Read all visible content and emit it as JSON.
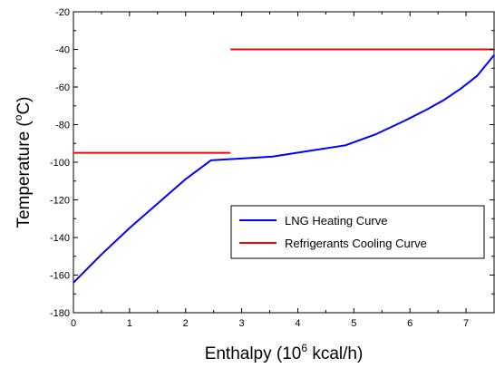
{
  "chart_data": {
    "type": "line",
    "xlabel": {
      "pre": "Enthalpy (10",
      "sup": "6",
      "post": " kcal/h)"
    },
    "ylabel": {
      "pre": "Temperature (",
      "sup": "o",
      "post": "C)"
    },
    "xlim": [
      0,
      7.5
    ],
    "ylim": [
      -180,
      -20
    ],
    "x_ticks": [
      0,
      1,
      2,
      3,
      4,
      5,
      6,
      7
    ],
    "y_ticks": [
      -180,
      -160,
      -140,
      -120,
      -100,
      -80,
      -60,
      -40,
      -20
    ],
    "grid": false,
    "legend_placement": "lower-right",
    "series": [
      {
        "name": "LNG Heating Curve",
        "color": "#0000ff",
        "points": [
          [
            0,
            -164
          ],
          [
            0.5,
            -149
          ],
          [
            1.0,
            -135
          ],
          [
            1.5,
            -122
          ],
          [
            2.0,
            -109
          ],
          [
            2.45,
            -99
          ],
          [
            3.0,
            -98
          ],
          [
            3.55,
            -97
          ],
          [
            4.2,
            -94
          ],
          [
            4.85,
            -91
          ],
          [
            5.4,
            -85
          ],
          [
            5.9,
            -78
          ],
          [
            6.3,
            -72
          ],
          [
            6.6,
            -67
          ],
          [
            6.9,
            -61
          ],
          [
            7.2,
            -54
          ],
          [
            7.5,
            -43
          ]
        ]
      },
      {
        "name": "Refrigerants Cooling Curve",
        "color": "#ff0000",
        "segments": [
          [
            [
              0,
              -95
            ],
            [
              2.8,
              -95
            ]
          ],
          [
            [
              2.8,
              -40
            ],
            [
              7.5,
              -40
            ]
          ]
        ]
      }
    ]
  }
}
